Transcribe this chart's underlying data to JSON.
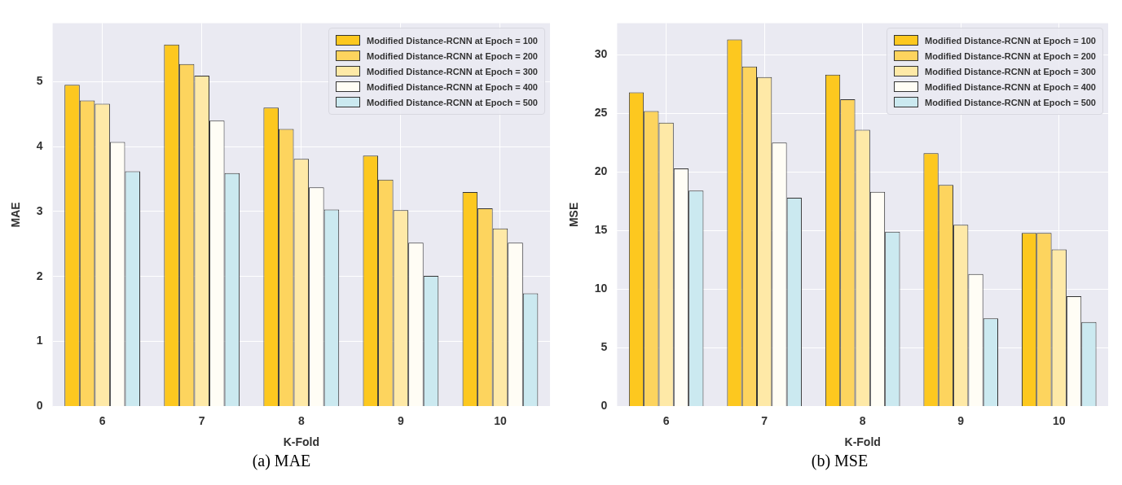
{
  "chart_data": [
    {
      "type": "bar",
      "xlabel": "K-Fold",
      "ylabel": "MAE",
      "categories": [
        "6",
        "7",
        "8",
        "9",
        "10"
      ],
      "ylim": [
        0,
        5.9
      ],
      "yticks": [
        0,
        1,
        2,
        3,
        4,
        5
      ],
      "grid": true,
      "legend": "top right",
      "annotations": [
        "(a) MAE"
      ],
      "series": [
        {
          "name": "Modified Distance-RCNN at Epoch = 100",
          "color": "#fdc81f",
          "values": [
            4.95,
            5.57,
            4.6,
            3.86,
            3.3
          ]
        },
        {
          "name": "Modified Distance-RCNN at Epoch = 200",
          "color": "#fdd45e",
          "values": [
            4.71,
            5.27,
            4.27,
            3.49,
            3.05
          ]
        },
        {
          "name": "Modified Distance-RCNN at Epoch = 300",
          "color": "#fee9a7",
          "values": [
            4.66,
            5.09,
            3.81,
            3.02,
            2.74
          ]
        },
        {
          "name": "Modified Distance-RCNN at Epoch = 400",
          "color": "#fffdf5",
          "values": [
            4.07,
            4.4,
            3.37,
            2.52,
            2.52
          ]
        },
        {
          "name": "Modified Distance-RCNN at Epoch = 500",
          "color": "#cbe9f0",
          "values": [
            3.62,
            3.59,
            3.03,
            2.01,
            1.74
          ]
        }
      ]
    },
    {
      "type": "bar",
      "xlabel": "K-Fold",
      "ylabel": "MSE",
      "categories": [
        "6",
        "7",
        "8",
        "9",
        "10"
      ],
      "ylim": [
        0,
        32.7
      ],
      "yticks": [
        0,
        5,
        10,
        15,
        20,
        25,
        30
      ],
      "grid": true,
      "legend": "top right",
      "annotations": [
        "(b) MSE"
      ],
      "series": [
        {
          "name": "Modified Distance-RCNN at Epoch = 100",
          "color": "#fdc81f",
          "values": [
            26.8,
            31.3,
            28.3,
            21.6,
            14.8
          ]
        },
        {
          "name": "Modified Distance-RCNN at Epoch = 200",
          "color": "#fdd45e",
          "values": [
            25.2,
            29.0,
            26.2,
            18.9,
            14.8
          ]
        },
        {
          "name": "Modified Distance-RCNN at Epoch = 300",
          "color": "#fee9a7",
          "values": [
            24.2,
            28.1,
            23.6,
            15.5,
            13.4
          ]
        },
        {
          "name": "Modified Distance-RCNN at Epoch = 400",
          "color": "#fffdf5",
          "values": [
            20.3,
            22.5,
            18.3,
            11.3,
            9.4
          ]
        },
        {
          "name": "Modified Distance-RCNN at Epoch = 500",
          "color": "#cbe9f0",
          "values": [
            18.4,
            17.8,
            14.9,
            7.5,
            7.2
          ]
        }
      ]
    }
  ]
}
